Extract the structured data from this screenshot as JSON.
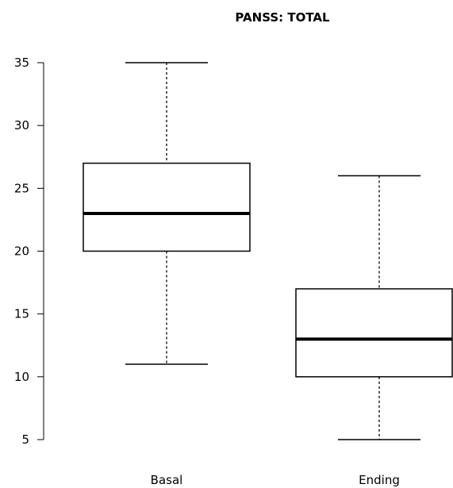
{
  "chart_data": {
    "type": "boxplot",
    "title": "PANSS: TOTAL",
    "xlabel": "",
    "ylabel": "",
    "ylim": [
      5,
      35
    ],
    "yticks": [
      5,
      10,
      15,
      20,
      25,
      30,
      35
    ],
    "grid": false,
    "categories": [
      "Basal",
      "Ending"
    ],
    "boxes": [
      {
        "category": "Basal",
        "whisker_low": 11,
        "q1": 20,
        "median": 23,
        "q3": 27,
        "whisker_high": 35
      },
      {
        "category": "Ending",
        "whisker_low": 5,
        "q1": 10,
        "median": 13,
        "q3": 17,
        "whisker_high": 26
      }
    ],
    "colors": {
      "box_fill": "#ffffff",
      "stroke": "#000000"
    }
  }
}
